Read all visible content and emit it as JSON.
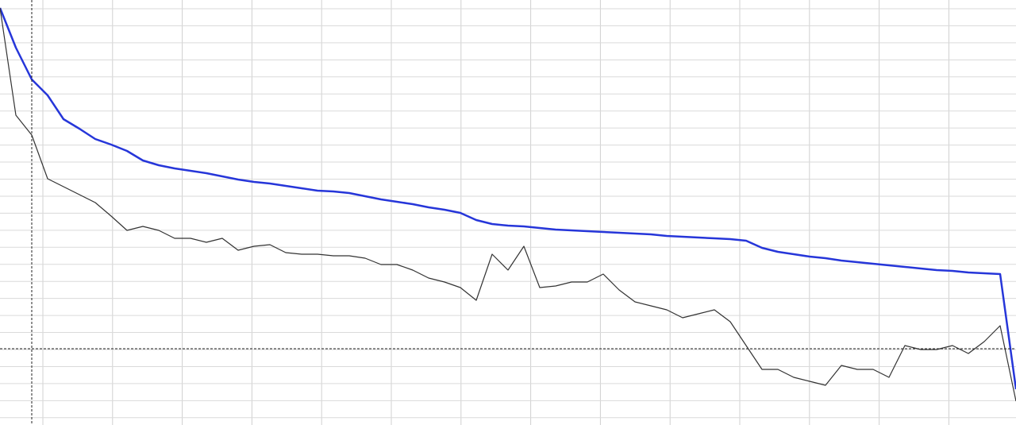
{
  "chart_data": {
    "type": "line",
    "ylim": [
      0,
      535
    ],
    "series": [
      {
        "color": "#2636d9",
        "values": [
          525,
          475,
          435,
          415,
          385,
          373,
          360,
          353,
          345,
          333,
          327,
          323,
          320,
          317,
          313,
          309,
          306,
          304,
          301,
          298,
          295,
          294,
          292,
          288,
          284,
          281,
          278,
          274,
          271,
          267,
          258,
          253,
          251,
          250,
          248,
          246,
          245,
          244,
          243,
          242,
          241,
          240,
          238,
          237,
          236,
          235,
          234,
          232,
          223,
          218,
          215,
          212,
          210,
          207,
          205,
          203,
          201,
          199,
          197,
          195,
          194,
          192,
          191,
          190,
          45
        ]
      },
      {
        "color": "#333333",
        "values": [
          525,
          390,
          365,
          310,
          300,
          290,
          280,
          263,
          245,
          250,
          245,
          235,
          235,
          230,
          235,
          220,
          225,
          227,
          217,
          215,
          215,
          213,
          213,
          210,
          202,
          202,
          195,
          185,
          180,
          173,
          157,
          215,
          195,
          225,
          173,
          175,
          180,
          180,
          190,
          170,
          155,
          150,
          145,
          135,
          140,
          145,
          130,
          100,
          70,
          70,
          60,
          55,
          50,
          75,
          70,
          70,
          60,
          100,
          95,
          95,
          100,
          90,
          105,
          125,
          30
        ]
      }
    ]
  }
}
